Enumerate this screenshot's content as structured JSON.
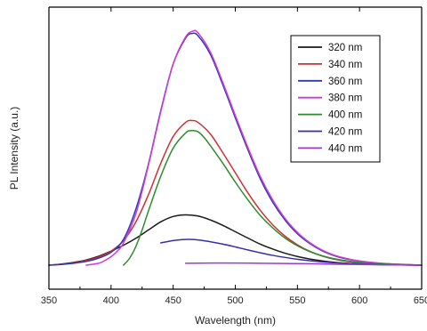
{
  "chart_data": {
    "type": "line",
    "title": "",
    "xlabel": "Wavelength (nm)",
    "ylabel": "PL Intensity (a.u.)",
    "xlim": [
      350,
      650
    ],
    "x_ticks": [
      350,
      400,
      450,
      500,
      550,
      600,
      650
    ],
    "ylim": [
      0,
      100
    ],
    "y_ticks_shown": false,
    "grid": false,
    "legend_placement": "top-right",
    "series": [
      {
        "name": "320 nm",
        "color": "#1a1a1a",
        "x": [
          350,
          360,
          370,
          380,
          390,
          400,
          410,
          420,
          430,
          440,
          450,
          460,
          470,
          480,
          490,
          500,
          510,
          520,
          530,
          540,
          550,
          560,
          570,
          580,
          590,
          600,
          620,
          650
        ],
        "y": [
          0,
          0.5,
          1.2,
          2.2,
          3.8,
          6.0,
          8.5,
          11.5,
          15.0,
          18.5,
          20.8,
          21.5,
          21.0,
          19.3,
          17.0,
          14.3,
          11.6,
          9.0,
          6.9,
          5.1,
          3.7,
          2.6,
          1.8,
          1.2,
          0.8,
          0.5,
          0.2,
          0
        ]
      },
      {
        "name": "340 nm",
        "color": "#d03030",
        "x": [
          350,
          360,
          370,
          380,
          390,
          400,
          410,
          420,
          430,
          440,
          450,
          460,
          465,
          470,
          480,
          490,
          500,
          510,
          520,
          530,
          540,
          550,
          560,
          570,
          580,
          590,
          600,
          620,
          650
        ],
        "y": [
          0,
          0.4,
          1.0,
          2.0,
          3.5,
          6.0,
          10.5,
          18.5,
          30.0,
          43.5,
          55.0,
          61.0,
          61.8,
          61.0,
          56.0,
          48.0,
          39.5,
          31.0,
          23.5,
          17.3,
          12.4,
          8.7,
          5.9,
          3.9,
          2.5,
          1.6,
          1.0,
          0.3,
          0
        ]
      },
      {
        "name": "360 nm",
        "color": "#2e3ab0",
        "x": [
          350,
          360,
          370,
          380,
          390,
          400,
          410,
          420,
          430,
          440,
          450,
          460,
          465,
          470,
          480,
          490,
          500,
          510,
          520,
          530,
          540,
          550,
          560,
          570,
          580,
          590,
          600,
          620,
          650
        ],
        "y": [
          0,
          0.3,
          0.8,
          1.6,
          3.0,
          5.5,
          11.0,
          24.0,
          43.0,
          66.0,
          86.0,
          97.0,
          99.0,
          98.0,
          90.0,
          77.0,
          63.0,
          49.5,
          37.0,
          27.0,
          19.3,
          13.4,
          9.2,
          6.1,
          4.0,
          2.6,
          1.7,
          0.6,
          0
        ]
      },
      {
        "name": "380 nm",
        "color": "#d03ad8",
        "x": [
          380,
          390,
          395,
          400,
          405,
          410,
          420,
          430,
          440,
          450,
          460,
          466,
          470,
          480,
          490,
          500,
          510,
          520,
          530,
          540,
          550,
          560,
          570,
          580,
          590,
          600,
          620,
          650
        ],
        "y": [
          0,
          0.8,
          2.0,
          3.6,
          6.0,
          9.5,
          22.0,
          42.5,
          65.5,
          86.0,
          97.5,
          100.0,
          99.3,
          91.0,
          78.0,
          64.0,
          50.5,
          38.0,
          28.0,
          20.0,
          14.0,
          9.6,
          6.4,
          4.2,
          2.8,
          1.8,
          0.7,
          0
        ]
      },
      {
        "name": "400 nm",
        "color": "#2e8b2e",
        "x": [
          410,
          415,
          420,
          425,
          430,
          440,
          450,
          460,
          465,
          470,
          475,
          480,
          490,
          500,
          510,
          520,
          530,
          540,
          550,
          560,
          570,
          580,
          590,
          600,
          620,
          650
        ],
        "y": [
          0,
          3.0,
          8.0,
          15.0,
          23.0,
          38.0,
          50.0,
          56.5,
          57.5,
          57.0,
          54.5,
          51.0,
          43.5,
          35.5,
          28.0,
          21.3,
          16.0,
          11.6,
          8.3,
          5.8,
          4.0,
          2.7,
          1.8,
          1.2,
          0.5,
          0
        ]
      },
      {
        "name": "420 nm",
        "color": "#3a2ea8",
        "x": [
          440,
          450,
          460,
          470,
          480,
          490,
          500,
          510,
          520,
          530,
          540,
          550,
          560,
          570,
          580,
          590,
          600,
          620,
          650
        ],
        "y": [
          9.5,
          10.5,
          11.0,
          10.8,
          10.0,
          9.0,
          7.8,
          6.5,
          5.3,
          4.2,
          3.3,
          2.5,
          1.9,
          1.4,
          1.0,
          0.7,
          0.5,
          0.2,
          0
        ]
      },
      {
        "name": "440 nm",
        "color": "#9a3ad8",
        "x": [
          460,
          480,
          500,
          520,
          540,
          560,
          580,
          600,
          620,
          650
        ],
        "y": [
          0.8,
          0.9,
          0.9,
          0.8,
          0.7,
          0.6,
          0.4,
          0.3,
          0.15,
          0
        ]
      }
    ]
  }
}
